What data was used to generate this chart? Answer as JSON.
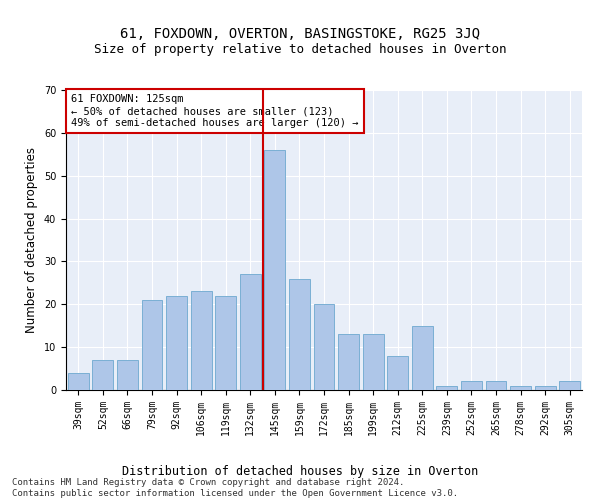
{
  "title": "61, FOXDOWN, OVERTON, BASINGSTOKE, RG25 3JQ",
  "subtitle": "Size of property relative to detached houses in Overton",
  "xlabel": "Distribution of detached houses by size in Overton",
  "ylabel": "Number of detached properties",
  "bar_labels": [
    "39sqm",
    "52sqm",
    "66sqm",
    "79sqm",
    "92sqm",
    "106sqm",
    "119sqm",
    "132sqm",
    "145sqm",
    "159sqm",
    "172sqm",
    "185sqm",
    "199sqm",
    "212sqm",
    "225sqm",
    "239sqm",
    "252sqm",
    "265sqm",
    "278sqm",
    "292sqm",
    "305sqm"
  ],
  "bar_values": [
    4,
    7,
    7,
    21,
    22,
    23,
    22,
    27,
    56,
    26,
    20,
    13,
    13,
    8,
    15,
    1,
    2,
    2,
    1,
    1,
    2
  ],
  "bar_color": "#aec6e8",
  "bar_edge_color": "#7aafd4",
  "vline_pos": 7.5,
  "vline_color": "#cc0000",
  "annotation_text": "61 FOXDOWN: 125sqm\n← 50% of detached houses are smaller (123)\n49% of semi-detached houses are larger (120) →",
  "annotation_box_color": "#ffffff",
  "annotation_box_edge_color": "#cc0000",
  "ylim": [
    0,
    70
  ],
  "yticks": [
    0,
    10,
    20,
    30,
    40,
    50,
    60,
    70
  ],
  "background_color": "#e8eef8",
  "footer_line1": "Contains HM Land Registry data © Crown copyright and database right 2024.",
  "footer_line2": "Contains public sector information licensed under the Open Government Licence v3.0.",
  "title_fontsize": 10,
  "xlabel_fontsize": 8.5,
  "ylabel_fontsize": 8.5,
  "tick_fontsize": 7,
  "footer_fontsize": 6.5,
  "annotation_fontsize": 7.5
}
